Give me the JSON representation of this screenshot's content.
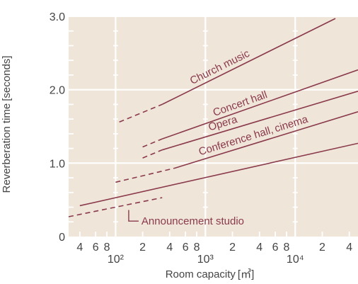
{
  "chart_data": {
    "type": "line",
    "xscale": "log",
    "yscale": "linear",
    "xlabel": "Room capacity [㎥]",
    "ylabel": "Reverberation time [seconds]",
    "xlim": [
      30,
      50000
    ],
    "ylim": [
      0,
      3.0
    ],
    "grid": true,
    "yticks": [
      {
        "value": 0,
        "label": "0"
      },
      {
        "value": 1.0,
        "label": "1.0"
      },
      {
        "value": 2.0,
        "label": "2.0"
      },
      {
        "value": 3.0,
        "label": "3.0"
      }
    ],
    "xticks_minor": [
      {
        "value": 40,
        "label": "4"
      },
      {
        "value": 60,
        "label": "6"
      },
      {
        "value": 80,
        "label": "8"
      },
      {
        "value": 200,
        "label": "2"
      },
      {
        "value": 400,
        "label": "4"
      },
      {
        "value": 600,
        "label": "6"
      },
      {
        "value": 800,
        "label": "8"
      },
      {
        "value": 2000,
        "label": "2"
      },
      {
        "value": 4000,
        "label": "4"
      },
      {
        "value": 6000,
        "label": "6"
      },
      {
        "value": 8000,
        "label": "8"
      },
      {
        "value": 20000,
        "label": "2"
      },
      {
        "value": 40000,
        "label": "4"
      }
    ],
    "xticks_major": [
      {
        "value": 100,
        "label": "10²"
      },
      {
        "value": 1000,
        "label": "10³"
      },
      {
        "value": 10000,
        "label": "10⁴"
      }
    ],
    "series": [
      {
        "name": "Church music",
        "color": "#8a3a4c",
        "dashed": {
          "x": [
            110,
            330
          ],
          "y": [
            1.56,
            1.8
          ]
        },
        "solid": {
          "x": [
            330,
            28000
          ],
          "y": [
            1.8,
            2.97
          ]
        }
      },
      {
        "name": "Concert hall",
        "color": "#8a3a4c",
        "dashed": {
          "x": [
            200,
            330
          ],
          "y": [
            1.22,
            1.33
          ]
        },
        "solid": {
          "x": [
            330,
            50000
          ],
          "y": [
            1.33,
            2.27
          ]
        }
      },
      {
        "name": "Opera",
        "color": "#8a3a4c",
        "dashed": {
          "x": [
            200,
            330
          ],
          "y": [
            1.07,
            1.18
          ]
        },
        "solid": {
          "x": [
            330,
            50000
          ],
          "y": [
            1.18,
            1.98
          ]
        }
      },
      {
        "name": "Conference hall, cinema",
        "color": "#8a3a4c",
        "dashed": {
          "x": [
            100,
            450
          ],
          "y": [
            0.74,
            0.93
          ]
        },
        "solid": {
          "x": [
            450,
            50000
          ],
          "y": [
            0.93,
            1.7
          ]
        }
      },
      {
        "name": "Announcement studio",
        "color": "#8a3a4c",
        "dashed": {
          "x": [
            30,
            330
          ],
          "y": [
            0.27,
            0.53
          ]
        },
        "solid": {
          "x": [
            40,
            50000
          ],
          "y": [
            0.42,
            1.27
          ]
        }
      }
    ],
    "colors": {
      "plot_background": "#efe5d8",
      "grid": "#ffffff",
      "line": "#8a3a4c",
      "text": "#444444"
    }
  }
}
